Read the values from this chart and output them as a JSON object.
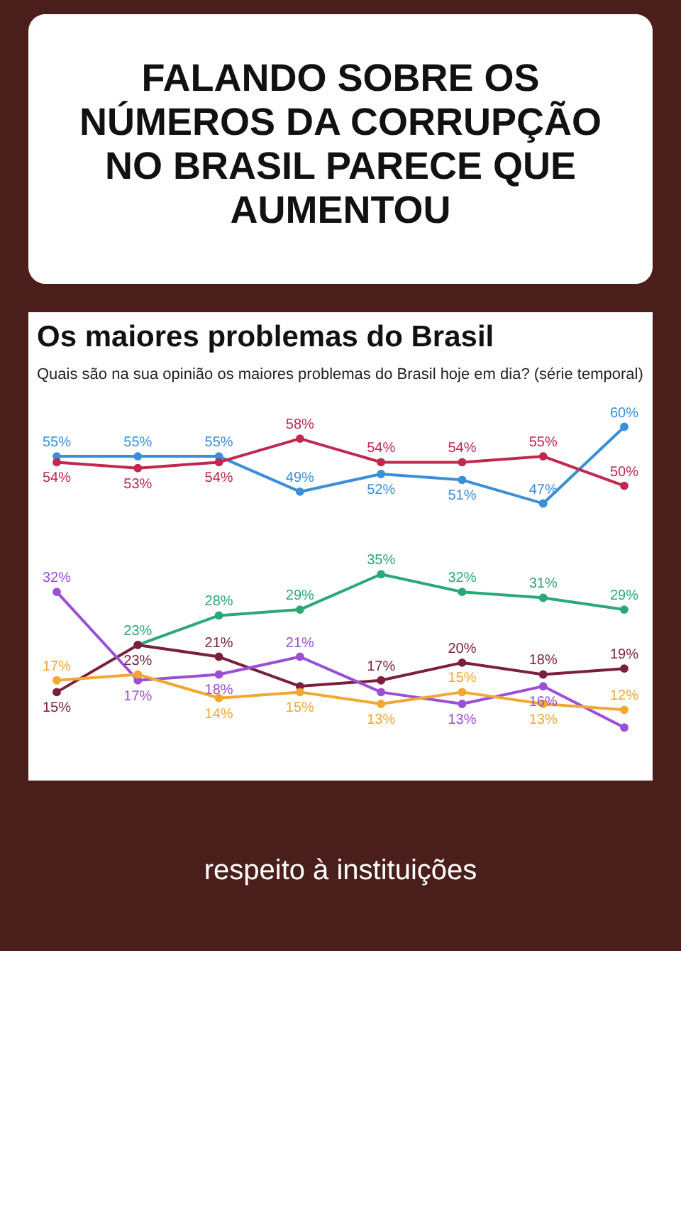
{
  "chart_data": {
    "type": "line",
    "title": "Os maiores problemas do Brasil",
    "subtitle": "Quais são na sua opinião os maiores problemas do Brasil hoje em dia? (série temporal)",
    "annotations": [
      "FALANDO SOBRE OS NÚMEROS DA CORRUPÇÃO NO BRASIL PARECE QUE AUMENTOU",
      "respeito à instituições"
    ],
    "categories": [
      null,
      null,
      null,
      null,
      null,
      null,
      null,
      null
    ],
    "marker": "circle",
    "series": [
      {
        "color": "#3a8fd9",
        "values": [
          55,
          55,
          55,
          49,
          52,
          51,
          47,
          60
        ],
        "value_labels": [
          "55%",
          "55%",
          "55%",
          "49%",
          "52%",
          "51%",
          "47%",
          "60%"
        ]
      },
      {
        "color": "#c0284f",
        "values": [
          54,
          53,
          54,
          58,
          54,
          54,
          55,
          50
        ],
        "value_labels": [
          "54%",
          "53%",
          "54%",
          "58%",
          "54%",
          "54%",
          "55%",
          "50%"
        ]
      },
      {
        "color": "#2aa876",
        "values": [
          null,
          23,
          28,
          29,
          35,
          32,
          31,
          29
        ],
        "value_labels": [
          null,
          "23%",
          "28%",
          "29%",
          "35%",
          "32%",
          "31%",
          "29%"
        ]
      },
      {
        "color": "#7a1f3d",
        "values": [
          15,
          23,
          21,
          16,
          17,
          20,
          18,
          19
        ],
        "value_labels": [
          "15%",
          "23%",
          "21%",
          null,
          "17%",
          "20%",
          "18%",
          "19%"
        ]
      },
      {
        "color": "#9b4fd6",
        "values": [
          32,
          17,
          18,
          21,
          15,
          13,
          16,
          9
        ],
        "value_labels": [
          "32%",
          "17%",
          "18%",
          "21%",
          null,
          "13%",
          "16%",
          null
        ]
      },
      {
        "color": "#f0a830",
        "values": [
          17,
          18,
          14,
          15,
          13,
          15,
          13,
          12
        ],
        "value_labels": [
          "17%",
          null,
          "14%",
          "15%",
          "13%",
          "15%",
          "13%",
          "12%"
        ]
      }
    ]
  }
}
